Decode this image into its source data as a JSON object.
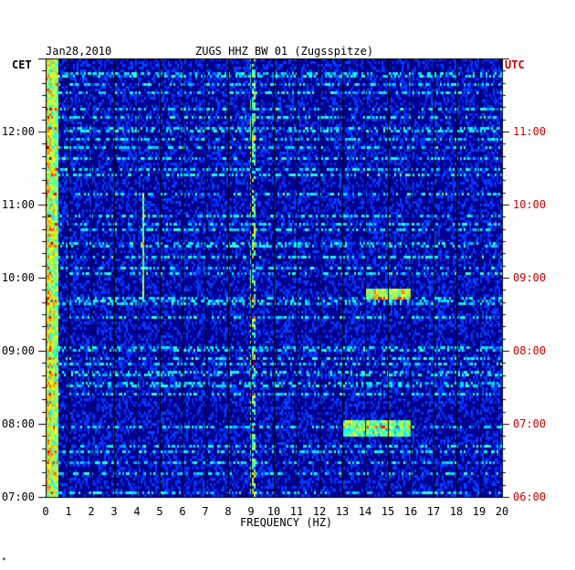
{
  "header": {
    "date": "Jan28,2010",
    "station": "ZUGS HHZ BW 01 (Zugsspitze)"
  },
  "axes": {
    "left_timezone": "CET",
    "right_timezone": "UTC",
    "left_color": "#000000",
    "right_color": "#cc0000"
  },
  "footer_mark": "*",
  "chart_data": {
    "type": "heatmap",
    "title": "ZUGS HHZ BW 01 (Zugsspitze)",
    "date": "Jan28,2010",
    "xlabel": "FREQUENCY (HZ)",
    "ylabel_left": "CET",
    "ylabel_right": "UTC",
    "xlim": [
      0,
      20
    ],
    "x_ticks": [
      "0",
      "1",
      "2",
      "3",
      "4",
      "5",
      "6",
      "7",
      "8",
      "9",
      "10",
      "11",
      "12",
      "13",
      "14",
      "15",
      "16",
      "17",
      "18",
      "19",
      "20"
    ],
    "y_ticks_left": [
      "07:00",
      "08:00",
      "09:00",
      "10:00",
      "11:00",
      "12:00"
    ],
    "y_ticks_right": [
      "06:00",
      "07:00",
      "08:00",
      "09:00",
      "10:00",
      "11:00"
    ],
    "time_range_cet": [
      "07:00",
      "13:00"
    ],
    "colormap": [
      "#00007f",
      "#0000ff",
      "#00ffff",
      "#ffff00",
      "#ff0000"
    ],
    "background_color": "#00008f",
    "notable_features": [
      {
        "freq_hz": 0.3,
        "description": "persistent high energy at low frequency"
      },
      {
        "freq_hz": 4.3,
        "description": "intermittent line"
      },
      {
        "freq_hz": 9.1,
        "description": "intermittent line"
      },
      {
        "freq_hz_range": [
          13,
          16
        ],
        "time_cet": "08:00",
        "description": "broadband burst"
      },
      {
        "freq_hz_range": [
          14,
          16
        ],
        "time_cet": "10:00",
        "description": "burst with red spots"
      }
    ]
  }
}
